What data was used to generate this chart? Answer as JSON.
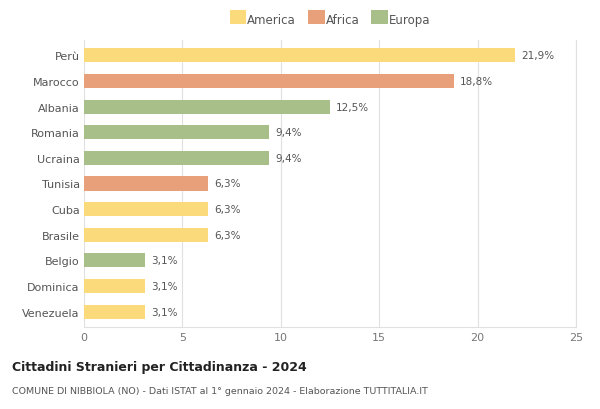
{
  "countries": [
    "Perù",
    "Marocco",
    "Albania",
    "Romania",
    "Ucraina",
    "Tunisia",
    "Cuba",
    "Brasile",
    "Belgio",
    "Dominica",
    "Venezuela"
  ],
  "values": [
    21.9,
    18.8,
    12.5,
    9.4,
    9.4,
    6.3,
    6.3,
    6.3,
    3.1,
    3.1,
    3.1
  ],
  "labels": [
    "21,9%",
    "18,8%",
    "12,5%",
    "9,4%",
    "9,4%",
    "6,3%",
    "6,3%",
    "6,3%",
    "3,1%",
    "3,1%",
    "3,1%"
  ],
  "colors": [
    "#FADA7A",
    "#E8A07A",
    "#A8BF8A",
    "#A8BF8A",
    "#A8BF8A",
    "#E8A07A",
    "#FADA7A",
    "#FADA7A",
    "#A8BF8A",
    "#FADA7A",
    "#FADA7A"
  ],
  "legend_labels": [
    "America",
    "Africa",
    "Europa"
  ],
  "legend_colors": [
    "#FADA7A",
    "#E8A07A",
    "#A8BF8A"
  ],
  "title": "Cittadini Stranieri per Cittadinanza - 2024",
  "subtitle": "COMUNE DI NIBBIOLA (NO) - Dati ISTAT al 1° gennaio 2024 - Elaborazione TUTTITALIA.IT",
  "xlim": [
    0,
    25
  ],
  "xticks": [
    0,
    5,
    10,
    15,
    20,
    25
  ],
  "background_color": "#FFFFFF",
  "grid_color": "#E0E0E0",
  "bar_height": 0.55
}
